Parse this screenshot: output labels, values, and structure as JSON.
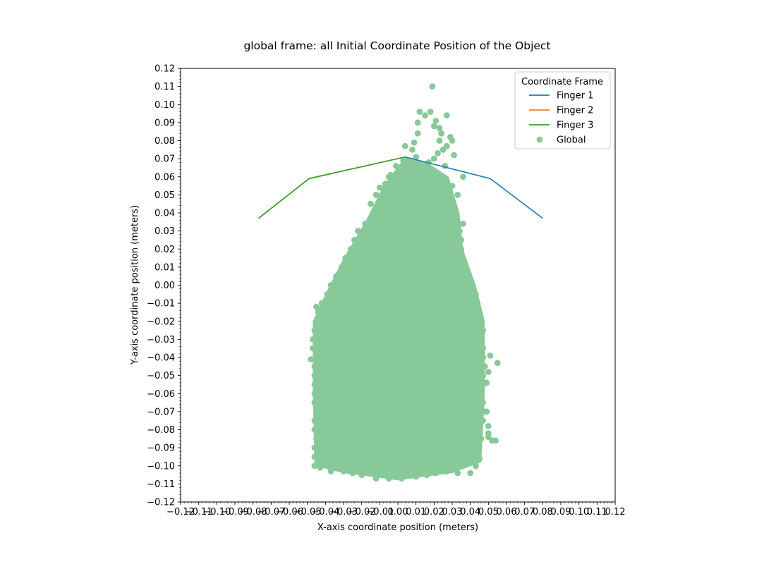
{
  "chart_data": {
    "type": "scatter",
    "title": "global frame: all Initial Coordinate Position of the Object",
    "xlabel": "X-axis coordinate position (meters)",
    "ylabel": "Y-axis coordinate position (meters)",
    "xlim": [
      -0.12,
      0.12
    ],
    "ylim": [
      -0.12,
      0.12
    ],
    "grid": false,
    "x_ticks": [
      -0.12,
      -0.11,
      -0.1,
      -0.09,
      -0.08,
      -0.07,
      -0.06,
      -0.05,
      -0.04,
      -0.03,
      -0.02,
      -0.01,
      0.0,
      0.01,
      0.02,
      0.03,
      0.04,
      0.05,
      0.06,
      0.07,
      0.08,
      0.09,
      0.1,
      0.11,
      0.12
    ],
    "x_tick_labels": [
      "−0.12",
      "−0.11",
      "−0.10",
      "−0.09",
      "−0.08",
      "−0.07",
      "−0.06",
      "−0.05",
      "−0.04",
      "−0.03",
      "−0.02",
      "−0.01",
      "0.00",
      "0.01",
      "0.02",
      "0.03",
      "0.04",
      "0.05",
      "0.06",
      "0.07",
      "0.08",
      "0.09",
      "0.10",
      "0.11",
      "0.12"
    ],
    "y_ticks": [
      0.12,
      0.11,
      0.1,
      0.09,
      0.08,
      0.07,
      0.06,
      0.05,
      0.04,
      0.03,
      0.02,
      0.01,
      0.0,
      -0.01,
      -0.02,
      -0.03,
      -0.04,
      -0.05,
      -0.06,
      -0.07,
      -0.08,
      -0.09,
      -0.1,
      -0.11,
      -0.12
    ],
    "y_tick_labels": [
      "0.12",
      "0.11",
      "0.10",
      "0.09",
      "0.08",
      "0.07",
      "0.06",
      "0.05",
      "0.04",
      "0.03",
      "0.02",
      "0.01",
      "0.00",
      "−0.01",
      "−0.02",
      "−0.03",
      "−0.04",
      "−0.05",
      "−0.06",
      "−0.07",
      "−0.08",
      "−0.09",
      "−0.10",
      "−0.11",
      "−0.12"
    ],
    "legend": {
      "title": "Coordinate Frame",
      "placement": "top-right",
      "entries": [
        {
          "label": "Finger 1",
          "kind": "line",
          "color": "#1f77b4"
        },
        {
          "label": "Finger 2",
          "kind": "line",
          "color": "#ff7f0e"
        },
        {
          "label": "Finger 3",
          "kind": "line",
          "color": "#2ca02c"
        },
        {
          "label": "Global",
          "kind": "marker",
          "color": "#87c999"
        }
      ]
    },
    "series": [
      {
        "name": "Finger 1",
        "type": "line",
        "color": "#1f77b4",
        "x": [
          0.004,
          0.051,
          0.08
        ],
        "y": [
          0.071,
          0.059,
          0.037
        ]
      },
      {
        "name": "Finger 2",
        "type": "line",
        "color": "#ff7f0e",
        "x": [
          0.004,
          -0.049,
          -0.077
        ],
        "y": [
          0.071,
          0.059,
          0.037
        ]
      },
      {
        "name": "Finger 3",
        "type": "line",
        "color": "#2ca02c",
        "x": [
          0.004,
          -0.049,
          -0.077
        ],
        "y": [
          0.071,
          0.059,
          0.037
        ]
      },
      {
        "name": "Global",
        "type": "scatter",
        "color": "#87c999",
        "points": [
          [
            0.019,
            0.11
          ],
          [
            0.012,
            0.096
          ],
          [
            0.018,
            0.096
          ],
          [
            0.027,
            0.094
          ],
          [
            0.015,
            0.094
          ],
          [
            0.011,
            0.09
          ],
          [
            0.021,
            0.091
          ],
          [
            0.023,
            0.087
          ],
          [
            0.02,
            0.088
          ],
          [
            0.024,
            0.084
          ],
          [
            0.011,
            0.084
          ],
          [
            0.029,
            0.082
          ],
          [
            0.03,
            0.08
          ],
          [
            0.023,
            0.08
          ],
          [
            0.004,
            0.077
          ],
          [
            0.027,
            0.077
          ],
          [
            0.009,
            0.079
          ],
          [
            0.025,
            0.075
          ],
          [
            0.031,
            0.072
          ],
          [
            0.022,
            0.073
          ],
          [
            0.02,
            0.07
          ],
          [
            0.008,
            0.075
          ],
          [
            0.003,
            0.069
          ],
          [
            0.01,
            0.071
          ],
          [
            0.017,
            0.068
          ],
          [
            0.026,
            0.066
          ],
          [
            0.012,
            0.066
          ],
          [
            0.036,
            0.06
          ],
          [
            0.03,
            0.055
          ],
          [
            0.033,
            0.05
          ],
          [
            0.024,
            0.06
          ],
          [
            -0.001,
            0.066
          ],
          [
            0.002,
            0.064
          ],
          [
            -0.005,
            0.06
          ],
          [
            -0.007,
            0.056
          ],
          [
            -0.01,
            0.054
          ],
          [
            -0.004,
            0.061
          ],
          [
            -0.015,
            0.045
          ],
          [
            -0.012,
            0.05
          ],
          [
            -0.013,
            0.04
          ],
          [
            -0.018,
            0.034
          ],
          [
            -0.022,
            0.03
          ],
          [
            -0.024,
            0.025
          ],
          [
            -0.026,
            0.02
          ],
          [
            -0.029,
            0.015
          ],
          [
            -0.031,
            0.01
          ],
          [
            -0.034,
            0.005
          ],
          [
            -0.037,
            0.0
          ],
          [
            -0.039,
            -0.005
          ],
          [
            -0.042,
            -0.01
          ],
          [
            -0.044,
            -0.015
          ],
          [
            -0.045,
            -0.02
          ],
          [
            -0.046,
            -0.025
          ],
          [
            -0.047,
            -0.03
          ],
          [
            -0.047,
            -0.035
          ],
          [
            -0.048,
            -0.041
          ],
          [
            -0.046,
            -0.045
          ],
          [
            -0.046,
            -0.05
          ],
          [
            -0.046,
            -0.055
          ],
          [
            -0.046,
            -0.06
          ],
          [
            -0.046,
            -0.065
          ],
          [
            -0.045,
            -0.07
          ],
          [
            -0.046,
            -0.075
          ],
          [
            -0.046,
            -0.08
          ],
          [
            -0.045,
            -0.085
          ],
          [
            -0.046,
            -0.09
          ],
          [
            -0.046,
            -0.095
          ],
          [
            -0.046,
            -0.1
          ],
          [
            -0.043,
            -0.101
          ],
          [
            -0.037,
            -0.103
          ],
          [
            -0.03,
            -0.103
          ],
          [
            -0.025,
            -0.104
          ],
          [
            -0.02,
            -0.105
          ],
          [
            -0.012,
            -0.107
          ],
          [
            -0.005,
            -0.107
          ],
          [
            0.002,
            -0.107
          ],
          [
            0.01,
            -0.106
          ],
          [
            0.016,
            -0.105
          ],
          [
            0.021,
            -0.104
          ],
          [
            0.027,
            -0.103
          ],
          [
            0.033,
            -0.104
          ],
          [
            0.04,
            -0.104
          ],
          [
            0.043,
            -0.1
          ],
          [
            0.045,
            -0.096
          ],
          [
            0.044,
            -0.09
          ],
          [
            0.046,
            -0.085
          ],
          [
            0.045,
            -0.08
          ],
          [
            0.047,
            -0.075
          ],
          [
            0.048,
            -0.07
          ],
          [
            0.047,
            -0.065
          ],
          [
            0.046,
            -0.06
          ],
          [
            0.047,
            -0.055
          ],
          [
            0.047,
            -0.05
          ],
          [
            0.048,
            -0.045
          ],
          [
            0.047,
            -0.04
          ],
          [
            0.047,
            -0.035
          ],
          [
            0.046,
            -0.03
          ],
          [
            0.047,
            -0.025
          ],
          [
            0.046,
            -0.02
          ],
          [
            0.045,
            -0.015
          ],
          [
            0.044,
            -0.01
          ],
          [
            0.043,
            -0.005
          ],
          [
            0.041,
            0.0
          ],
          [
            0.038,
            0.005
          ],
          [
            0.037,
            0.01
          ],
          [
            0.036,
            0.015
          ],
          [
            0.035,
            0.02
          ],
          [
            0.035,
            0.025
          ],
          [
            0.034,
            0.03
          ],
          [
            0.036,
            0.034
          ],
          [
            0.031,
            0.04
          ],
          [
            0.029,
            0.045
          ],
          [
            0.026,
            0.052
          ],
          [
            0.051,
            -0.039
          ],
          [
            0.055,
            -0.043
          ],
          [
            0.05,
            -0.048
          ],
          [
            0.049,
            -0.054
          ],
          [
            0.049,
            -0.07
          ],
          [
            0.05,
            -0.078
          ],
          [
            0.05,
            -0.082
          ],
          [
            0.052,
            -0.086
          ],
          [
            0.054,
            -0.086
          ],
          [
            0.05,
            -0.084
          ],
          [
            -0.045,
            -0.012
          ],
          [
            -0.04,
            -0.018
          ],
          [
            -0.035,
            -0.025
          ],
          [
            -0.028,
            -0.01
          ],
          [
            -0.02,
            0.005
          ],
          [
            -0.015,
            0.02
          ],
          [
            -0.01,
            0.03
          ],
          [
            -0.005,
            0.04
          ],
          [
            0.0,
            0.045
          ],
          [
            0.005,
            0.05
          ],
          [
            0.01,
            0.055
          ],
          [
            0.015,
            0.058
          ],
          [
            0.02,
            0.05
          ],
          [
            0.025,
            0.04
          ],
          [
            0.03,
            0.03
          ],
          [
            0.032,
            0.02
          ],
          [
            0.033,
            0.01
          ],
          [
            0.034,
            0.0
          ],
          [
            0.036,
            -0.01
          ],
          [
            0.038,
            -0.02
          ],
          [
            0.04,
            -0.03
          ],
          [
            0.041,
            -0.04
          ],
          [
            0.042,
            -0.05
          ],
          [
            0.042,
            -0.06
          ],
          [
            0.043,
            -0.07
          ],
          [
            0.043,
            -0.08
          ],
          [
            0.042,
            -0.09
          ],
          [
            0.04,
            -0.098
          ],
          [
            0.035,
            -0.1
          ],
          [
            0.028,
            -0.098
          ],
          [
            0.02,
            -0.099
          ],
          [
            0.012,
            -0.1
          ],
          [
            0.004,
            -0.101
          ],
          [
            -0.004,
            -0.101
          ],
          [
            -0.012,
            -0.1
          ],
          [
            -0.02,
            -0.099
          ],
          [
            -0.028,
            -0.098
          ],
          [
            -0.035,
            -0.097
          ],
          [
            -0.04,
            -0.095
          ],
          [
            -0.042,
            -0.088
          ],
          [
            -0.042,
            -0.08
          ],
          [
            -0.042,
            -0.07
          ],
          [
            -0.042,
            -0.06
          ],
          [
            -0.042,
            -0.05
          ],
          [
            -0.041,
            -0.04
          ],
          [
            -0.04,
            -0.03
          ],
          [
            -0.038,
            -0.02
          ],
          [
            -0.035,
            -0.01
          ],
          [
            -0.03,
            0.0
          ],
          [
            -0.025,
            0.01
          ],
          [
            -0.02,
            0.018
          ],
          [
            -0.015,
            0.028
          ],
          [
            -0.01,
            0.036
          ],
          [
            -0.005,
            0.046
          ],
          [
            0.0,
            0.052
          ],
          [
            0.006,
            0.058
          ],
          [
            0.012,
            0.062
          ],
          [
            0.018,
            0.064
          ],
          [
            0.022,
            0.062
          ],
          [
            0.027,
            0.058
          ],
          [
            0.0,
            -0.03
          ],
          [
            0.01,
            -0.04
          ],
          [
            -0.01,
            -0.05
          ],
          [
            0.02,
            -0.06
          ],
          [
            -0.02,
            -0.07
          ],
          [
            0.03,
            -0.08
          ],
          [
            -0.03,
            -0.085
          ],
          [
            0.015,
            -0.02
          ],
          [
            -0.015,
            -0.01
          ],
          [
            0.005,
            0.0
          ],
          [
            0.025,
            0.01
          ],
          [
            -0.025,
            -0.04
          ],
          [
            0.035,
            -0.05
          ],
          [
            -0.035,
            -0.06
          ],
          [
            0.0,
            0.02
          ],
          [
            0.01,
            0.03
          ],
          [
            -0.005,
            -0.09
          ],
          [
            0.022,
            -0.092
          ],
          [
            -0.022,
            -0.088
          ],
          [
            0.008,
            -0.075
          ]
        ]
      }
    ]
  }
}
